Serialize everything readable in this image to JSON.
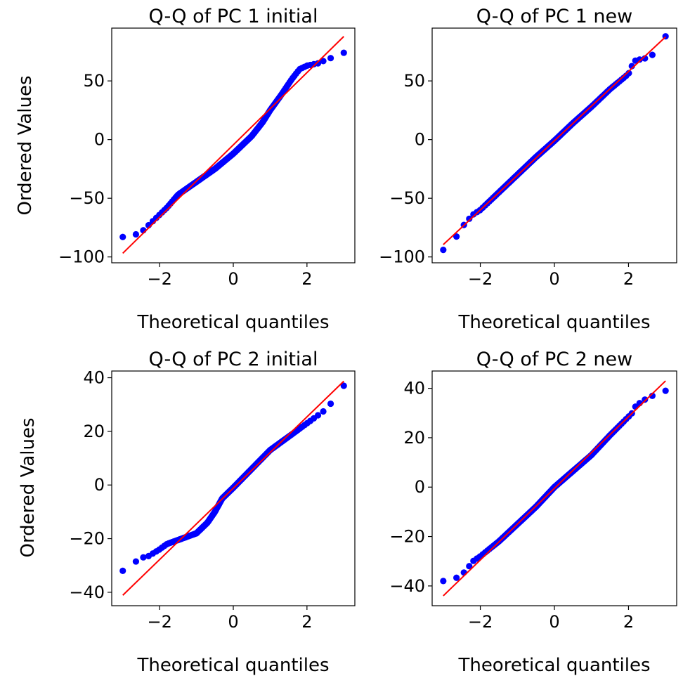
{
  "figure": {
    "ylabel_row1": "Ordered Values",
    "ylabel_row2": "Ordered Values"
  },
  "colors": {
    "points": "#0000ff",
    "fit_line": "#ff0000"
  },
  "chart_data": [
    {
      "type": "scatter",
      "title": "Q-Q of PC 1 initial",
      "xlabel": "Theoretical quantiles",
      "ylabel": "Ordered Values",
      "xlim": [
        -3.3,
        3.3
      ],
      "ylim": [
        -105,
        95
      ],
      "xticks": [
        -2,
        0,
        2
      ],
      "xtick_labels": [
        "−2",
        "0",
        "2"
      ],
      "yticks": [
        -100,
        -50,
        0,
        50
      ],
      "ytick_labels": [
        "−100",
        "−50",
        "0",
        "50"
      ],
      "fit_line": {
        "slope": 30.8,
        "intercept": -4.5
      },
      "profile": [
        [
          -3.0,
          -83
        ],
        [
          -2.75,
          -82
        ],
        [
          -2.5,
          -79
        ],
        [
          -2.2,
          -70
        ],
        [
          -1.8,
          -58
        ],
        [
          -1.5,
          -47
        ],
        [
          -1.0,
          -36
        ],
        [
          -0.5,
          -25
        ],
        [
          0.0,
          -12
        ],
        [
          0.5,
          3
        ],
        [
          0.8,
          15
        ],
        [
          1.0,
          25
        ],
        [
          1.3,
          38
        ],
        [
          1.6,
          52
        ],
        [
          1.8,
          60
        ],
        [
          2.0,
          63
        ],
        [
          2.3,
          65
        ],
        [
          2.6,
          69
        ],
        [
          2.8,
          71
        ],
        [
          3.0,
          74
        ]
      ]
    },
    {
      "type": "scatter",
      "title": "Q-Q of PC 1 new",
      "xlabel": "Theoretical quantiles",
      "ylabel": "",
      "xlim": [
        -3.3,
        3.3
      ],
      "ylim": [
        -105,
        95
      ],
      "xticks": [
        -2,
        0,
        2
      ],
      "xtick_labels": [
        "−2",
        "0",
        "2"
      ],
      "yticks": [
        -100,
        -50,
        0,
        50
      ],
      "ytick_labels": [
        "−100",
        "−50",
        "0",
        "50"
      ],
      "fit_line": {
        "slope": 29.5,
        "intercept": -1
      },
      "profile": [
        [
          -3.0,
          -94
        ],
        [
          -2.75,
          -89
        ],
        [
          -2.55,
          -77
        ],
        [
          -2.4,
          -71
        ],
        [
          -2.2,
          -64
        ],
        [
          -2.0,
          -60
        ],
        [
          -1.5,
          -45
        ],
        [
          -1.0,
          -30
        ],
        [
          -0.5,
          -15
        ],
        [
          0.0,
          -1
        ],
        [
          0.5,
          14
        ],
        [
          1.0,
          28
        ],
        [
          1.5,
          43
        ],
        [
          2.0,
          56
        ],
        [
          2.15,
          67
        ],
        [
          2.4,
          69
        ],
        [
          2.6,
          70
        ],
        [
          2.8,
          80
        ],
        [
          3.0,
          88
        ]
      ]
    },
    {
      "type": "scatter",
      "title": "Q-Q of PC 2 initial",
      "xlabel": "Theoretical quantiles",
      "ylabel": "Ordered Values",
      "xlim": [
        -3.3,
        3.3
      ],
      "ylim": [
        -45,
        42.5
      ],
      "xticks": [
        -2,
        0,
        2
      ],
      "xtick_labels": [
        "−2",
        "0",
        "2"
      ],
      "yticks": [
        -40,
        -20,
        0,
        20,
        40
      ],
      "ytick_labels": [
        "−40",
        "−20",
        "0",
        "20",
        "40"
      ],
      "fit_line": {
        "slope": 13.3,
        "intercept": -1.2
      },
      "profile": [
        [
          -3.0,
          -32
        ],
        [
          -2.75,
          -31
        ],
        [
          -2.6,
          -27.5
        ],
        [
          -2.3,
          -26.5
        ],
        [
          -2.0,
          -24
        ],
        [
          -1.8,
          -22
        ],
        [
          -1.5,
          -20.5
        ],
        [
          -1.0,
          -18
        ],
        [
          -0.7,
          -14
        ],
        [
          -0.5,
          -10
        ],
        [
          -0.3,
          -5
        ],
        [
          0.0,
          -1
        ],
        [
          0.5,
          6
        ],
        [
          1.0,
          13
        ],
        [
          1.5,
          18
        ],
        [
          2.0,
          23
        ],
        [
          2.3,
          26
        ],
        [
          2.6,
          29
        ],
        [
          2.8,
          35
        ],
        [
          3.0,
          37
        ]
      ]
    },
    {
      "type": "scatter",
      "title": "Q-Q of PC 2 new",
      "xlabel": "Theoretical quantiles",
      "ylabel": "",
      "xlim": [
        -3.3,
        3.3
      ],
      "ylim": [
        -48,
        47
      ],
      "xticks": [
        -2,
        0,
        2
      ],
      "xtick_labels": [
        "−2",
        "0",
        "2"
      ],
      "yticks": [
        -40,
        -20,
        0,
        20,
        40
      ],
      "ytick_labels": [
        "−40",
        "−20",
        "0",
        "20",
        "40"
      ],
      "fit_line": {
        "slope": 14.5,
        "intercept": -0.5
      },
      "profile": [
        [
          -3.0,
          -38
        ],
        [
          -2.75,
          -37.5
        ],
        [
          -2.55,
          -36
        ],
        [
          -2.4,
          -34
        ],
        [
          -2.2,
          -30
        ],
        [
          -2.0,
          -28
        ],
        [
          -1.5,
          -22
        ],
        [
          -1.0,
          -15
        ],
        [
          -0.5,
          -8
        ],
        [
          0.0,
          0
        ],
        [
          0.5,
          6.5
        ],
        [
          1.0,
          13
        ],
        [
          1.5,
          21
        ],
        [
          1.9,
          27
        ],
        [
          2.1,
          30
        ],
        [
          2.2,
          33
        ],
        [
          2.5,
          36
        ],
        [
          2.8,
          38
        ],
        [
          3.0,
          39
        ]
      ]
    }
  ]
}
